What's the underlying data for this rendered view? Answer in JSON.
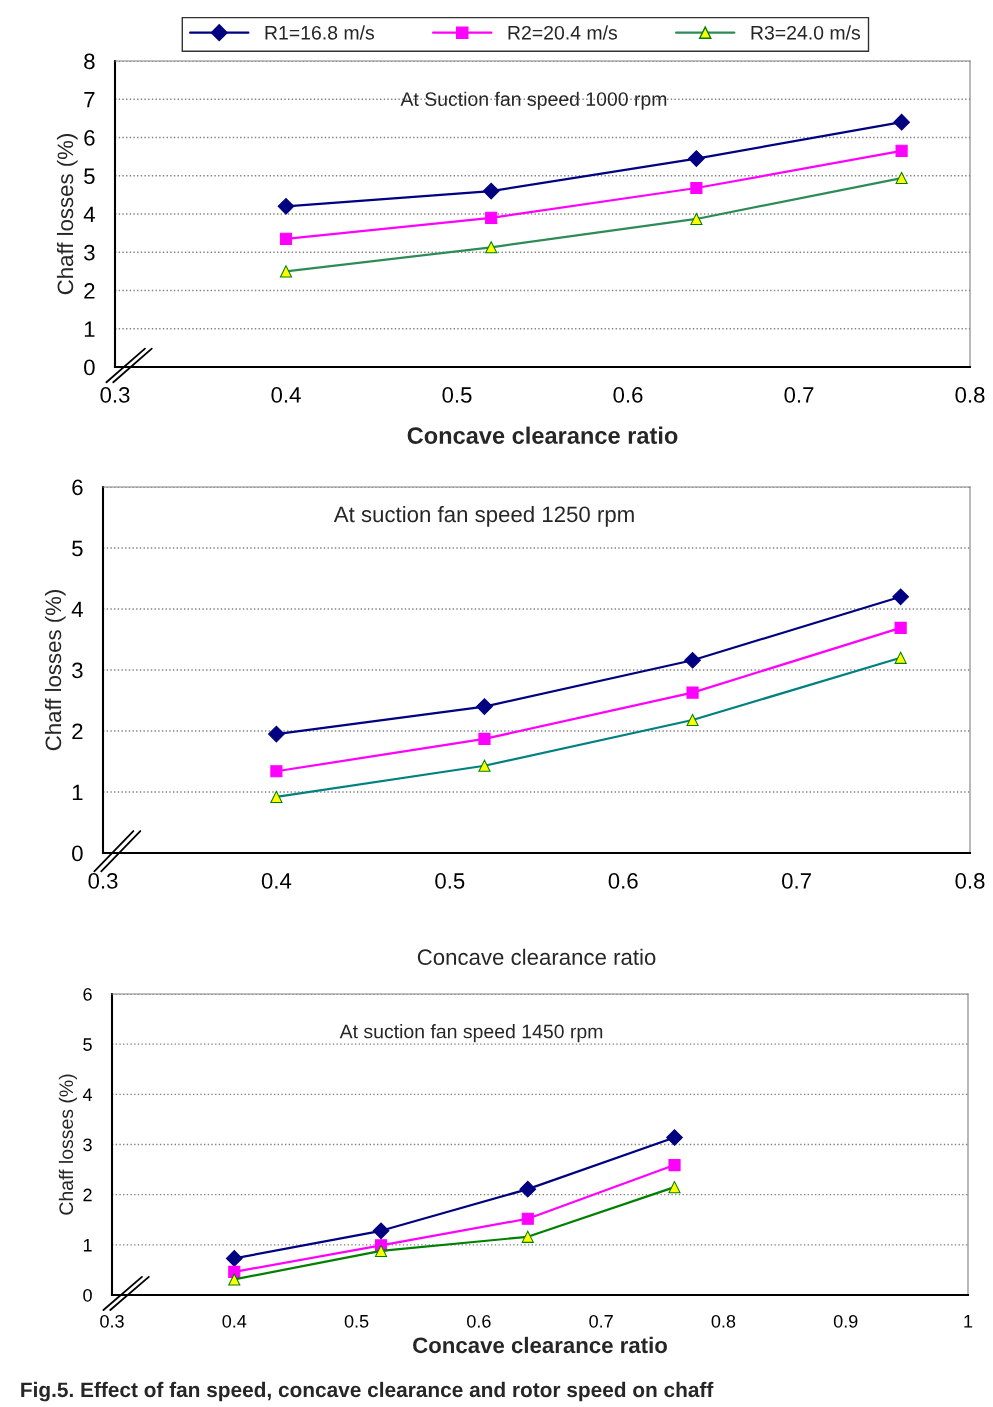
{
  "chart_data": [
    {
      "type": "line",
      "title": "At Suction fan speed 1000 rpm",
      "xlabel": "Concave clearance ratio",
      "ylabel": "Chaff losses (%)",
      "x": [
        0.4,
        0.52,
        0.64,
        0.76
      ],
      "series": [
        {
          "name": "R1=16.8 m/s",
          "color": "#000080",
          "marker": "diamond",
          "values": [
            4.2,
            4.6,
            5.45,
            6.4
          ]
        },
        {
          "name": "R2=20.4 m/s",
          "color": "#ff00ff",
          "marker": "square",
          "values": [
            3.35,
            3.9,
            4.68,
            5.65
          ]
        },
        {
          "name": "R3=24.0 m/s",
          "color": "#2e8b57",
          "marker": "triangle",
          "values": [
            2.5,
            3.13,
            3.87,
            4.94
          ]
        }
      ],
      "xlim": [
        0.3,
        0.8
      ],
      "xticks": [
        0.3,
        0.4,
        0.5,
        0.6,
        0.7,
        0.8
      ],
      "ylim": [
        0,
        8
      ],
      "yticks": [
        0,
        1,
        2,
        3,
        4,
        5,
        6,
        7,
        8
      ],
      "grid": "y",
      "legend": "top"
    },
    {
      "type": "line",
      "title": "At suction fan speed 1250 rpm",
      "xlabel": "Concave clearance ratio",
      "ylabel": "Chaff losses (%)",
      "x": [
        0.4,
        0.52,
        0.64,
        0.76
      ],
      "series": [
        {
          "color": "#000080",
          "marker": "diamond",
          "values": [
            1.95,
            2.4,
            3.16,
            4.2
          ]
        },
        {
          "color": "#ff00ff",
          "marker": "square",
          "values": [
            1.34,
            1.87,
            2.63,
            3.69
          ]
        },
        {
          "color": "#008080",
          "marker": "triangle",
          "values": [
            0.92,
            1.43,
            2.18,
            3.2
          ]
        }
      ],
      "xlim": [
        0.3,
        0.8
      ],
      "xticks": [
        0.3,
        0.4,
        0.5,
        0.6,
        0.7,
        0.8
      ],
      "ylim": [
        0,
        6
      ],
      "yticks": [
        0,
        1,
        2,
        3,
        4,
        5,
        6
      ],
      "grid": "y"
    },
    {
      "type": "line",
      "title": "At suction fan speed 1450 rpm",
      "xlabel": "Concave clearance ratio",
      "ylabel": "Chaff losses (%)",
      "x": [
        0.4,
        0.52,
        0.64,
        0.76
      ],
      "series": [
        {
          "color": "#000080",
          "marker": "diamond",
          "values": [
            0.73,
            1.28,
            2.11,
            3.14
          ]
        },
        {
          "color": "#ff00ff",
          "marker": "square",
          "values": [
            0.46,
            0.99,
            1.52,
            2.59
          ]
        },
        {
          "color": "#008000",
          "marker": "triangle",
          "values": [
            0.31,
            0.88,
            1.16,
            2.15
          ]
        }
      ],
      "xlim": [
        0.3,
        1
      ],
      "xticks": [
        0.3,
        0.4,
        0.5,
        0.6,
        0.7,
        0.8,
        0.9,
        1
      ],
      "ylim": [
        0,
        6
      ],
      "yticks": [
        0,
        1,
        2,
        3,
        4,
        5,
        6
      ],
      "grid": "y",
      "annotations": [
        "Fig.5. Effect of fan speed, concave clearance and rotor speed on chaff"
      ]
    }
  ]
}
